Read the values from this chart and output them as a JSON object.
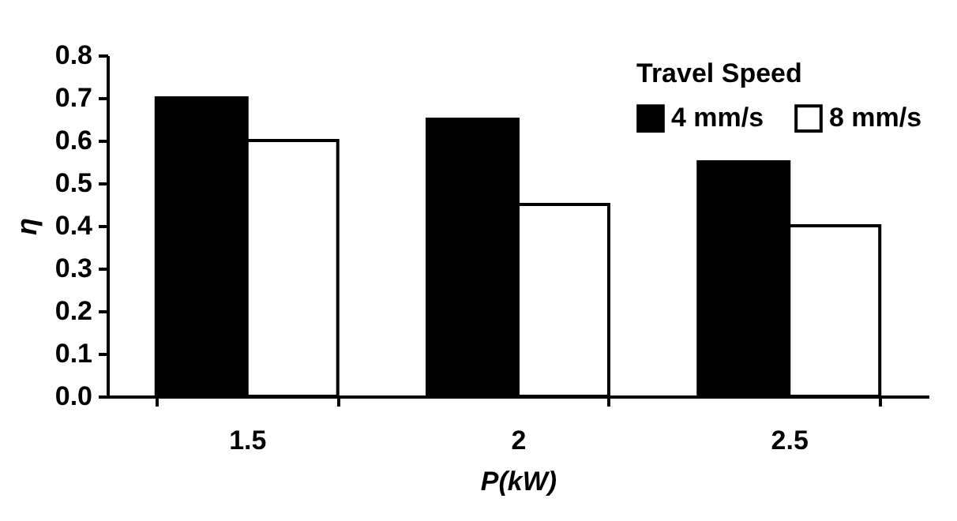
{
  "chart_data": {
    "type": "bar",
    "xlabel": "P(kW)",
    "ylabel": "η",
    "legend_title": "Travel Speed",
    "categories": [
      "1.5",
      "2",
      "2.5"
    ],
    "series": [
      {
        "name": "4 mm/s",
        "color": "#000000",
        "values": [
          0.7,
          0.65,
          0.55
        ]
      },
      {
        "name": "8 mm/s",
        "color": "#ffffff",
        "values": [
          0.6,
          0.45,
          0.4
        ]
      }
    ],
    "ylim": [
      0,
      0.8
    ],
    "yticks": [
      {
        "value": 0,
        "label": "0.0"
      },
      0.1,
      0.2,
      0.3,
      0.4,
      0.5,
      0.6,
      0.7,
      0.8
    ],
    "grid": false,
    "legend": "top right"
  }
}
